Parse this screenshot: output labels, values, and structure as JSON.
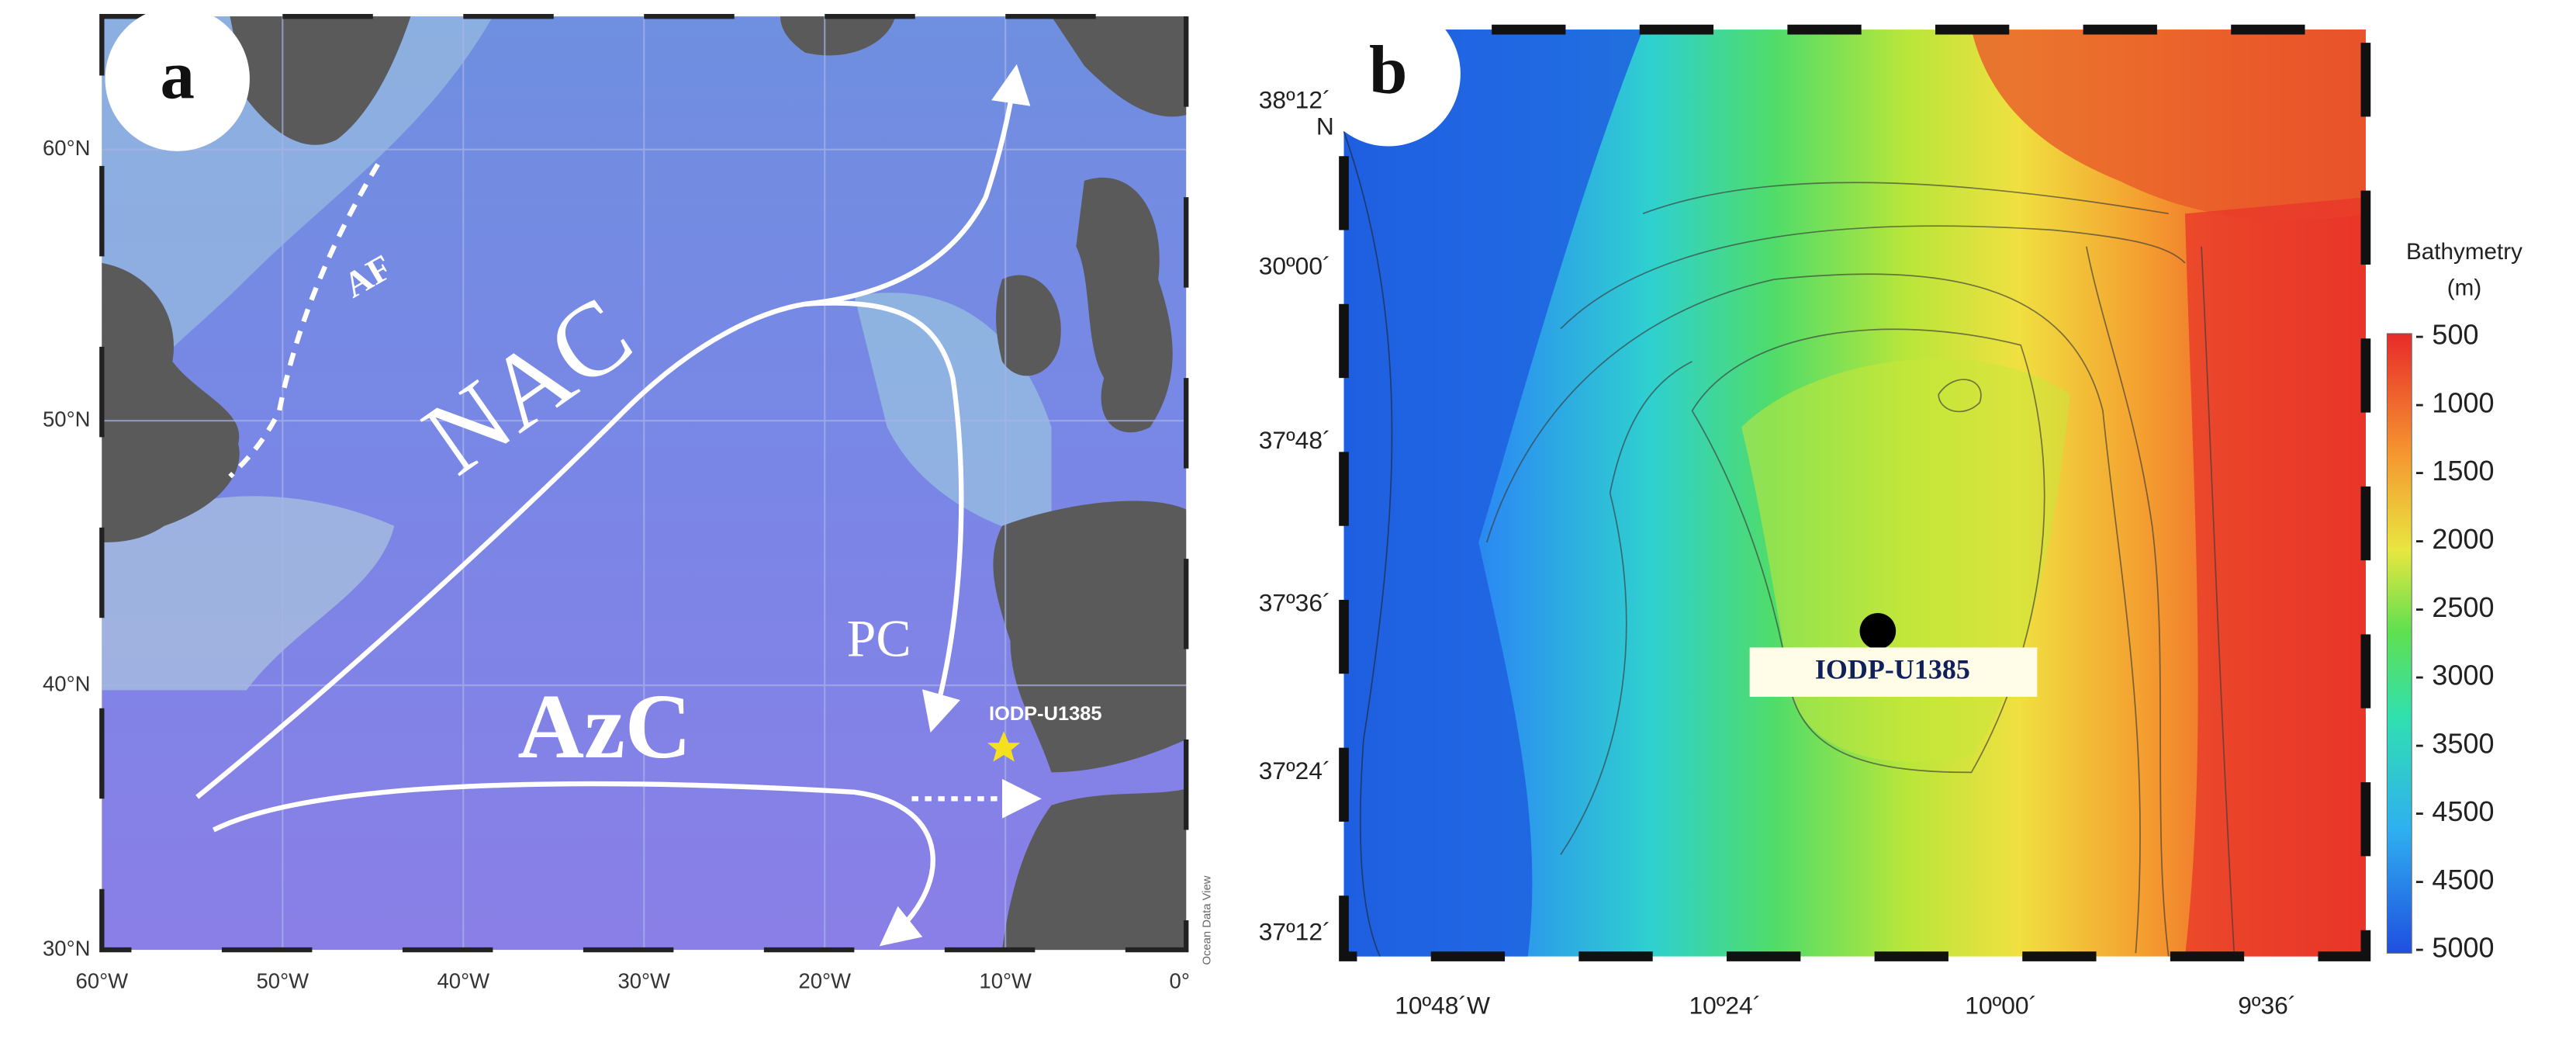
{
  "panel_a": {
    "label": "a",
    "lat_labels": [
      "60°N",
      "50°N",
      "40°N",
      "30°N"
    ],
    "lon_labels": [
      "60°W",
      "50°W",
      "40°W",
      "30°W",
      "20°W",
      "10°W",
      "0°"
    ],
    "annotations": [
      "AF",
      "NAC",
      "PC",
      "AzC"
    ],
    "site": "IODP-U1385",
    "credit": "Ocean Data View"
  },
  "panel_b": {
    "label": "b",
    "lat_labels": [
      "38º12´",
      "30º00´",
      "37º48´",
      "37º36´",
      "37º24´",
      "37º12´"
    ],
    "lat_suffix": "N",
    "lon_labels": [
      "10º48´W",
      "10º24´",
      "10º00´",
      "9º36´"
    ],
    "site": "IODP-U1385",
    "colorbar": {
      "title": "Bathymetry",
      "unit": "(m)",
      "ticks": [
        "- 500",
        "- 1000",
        "- 1500",
        "- 2000",
        "- 2500",
        "- 3000",
        "- 3500",
        "- 4500",
        "- 4500",
        "- 5000"
      ]
    }
  }
}
